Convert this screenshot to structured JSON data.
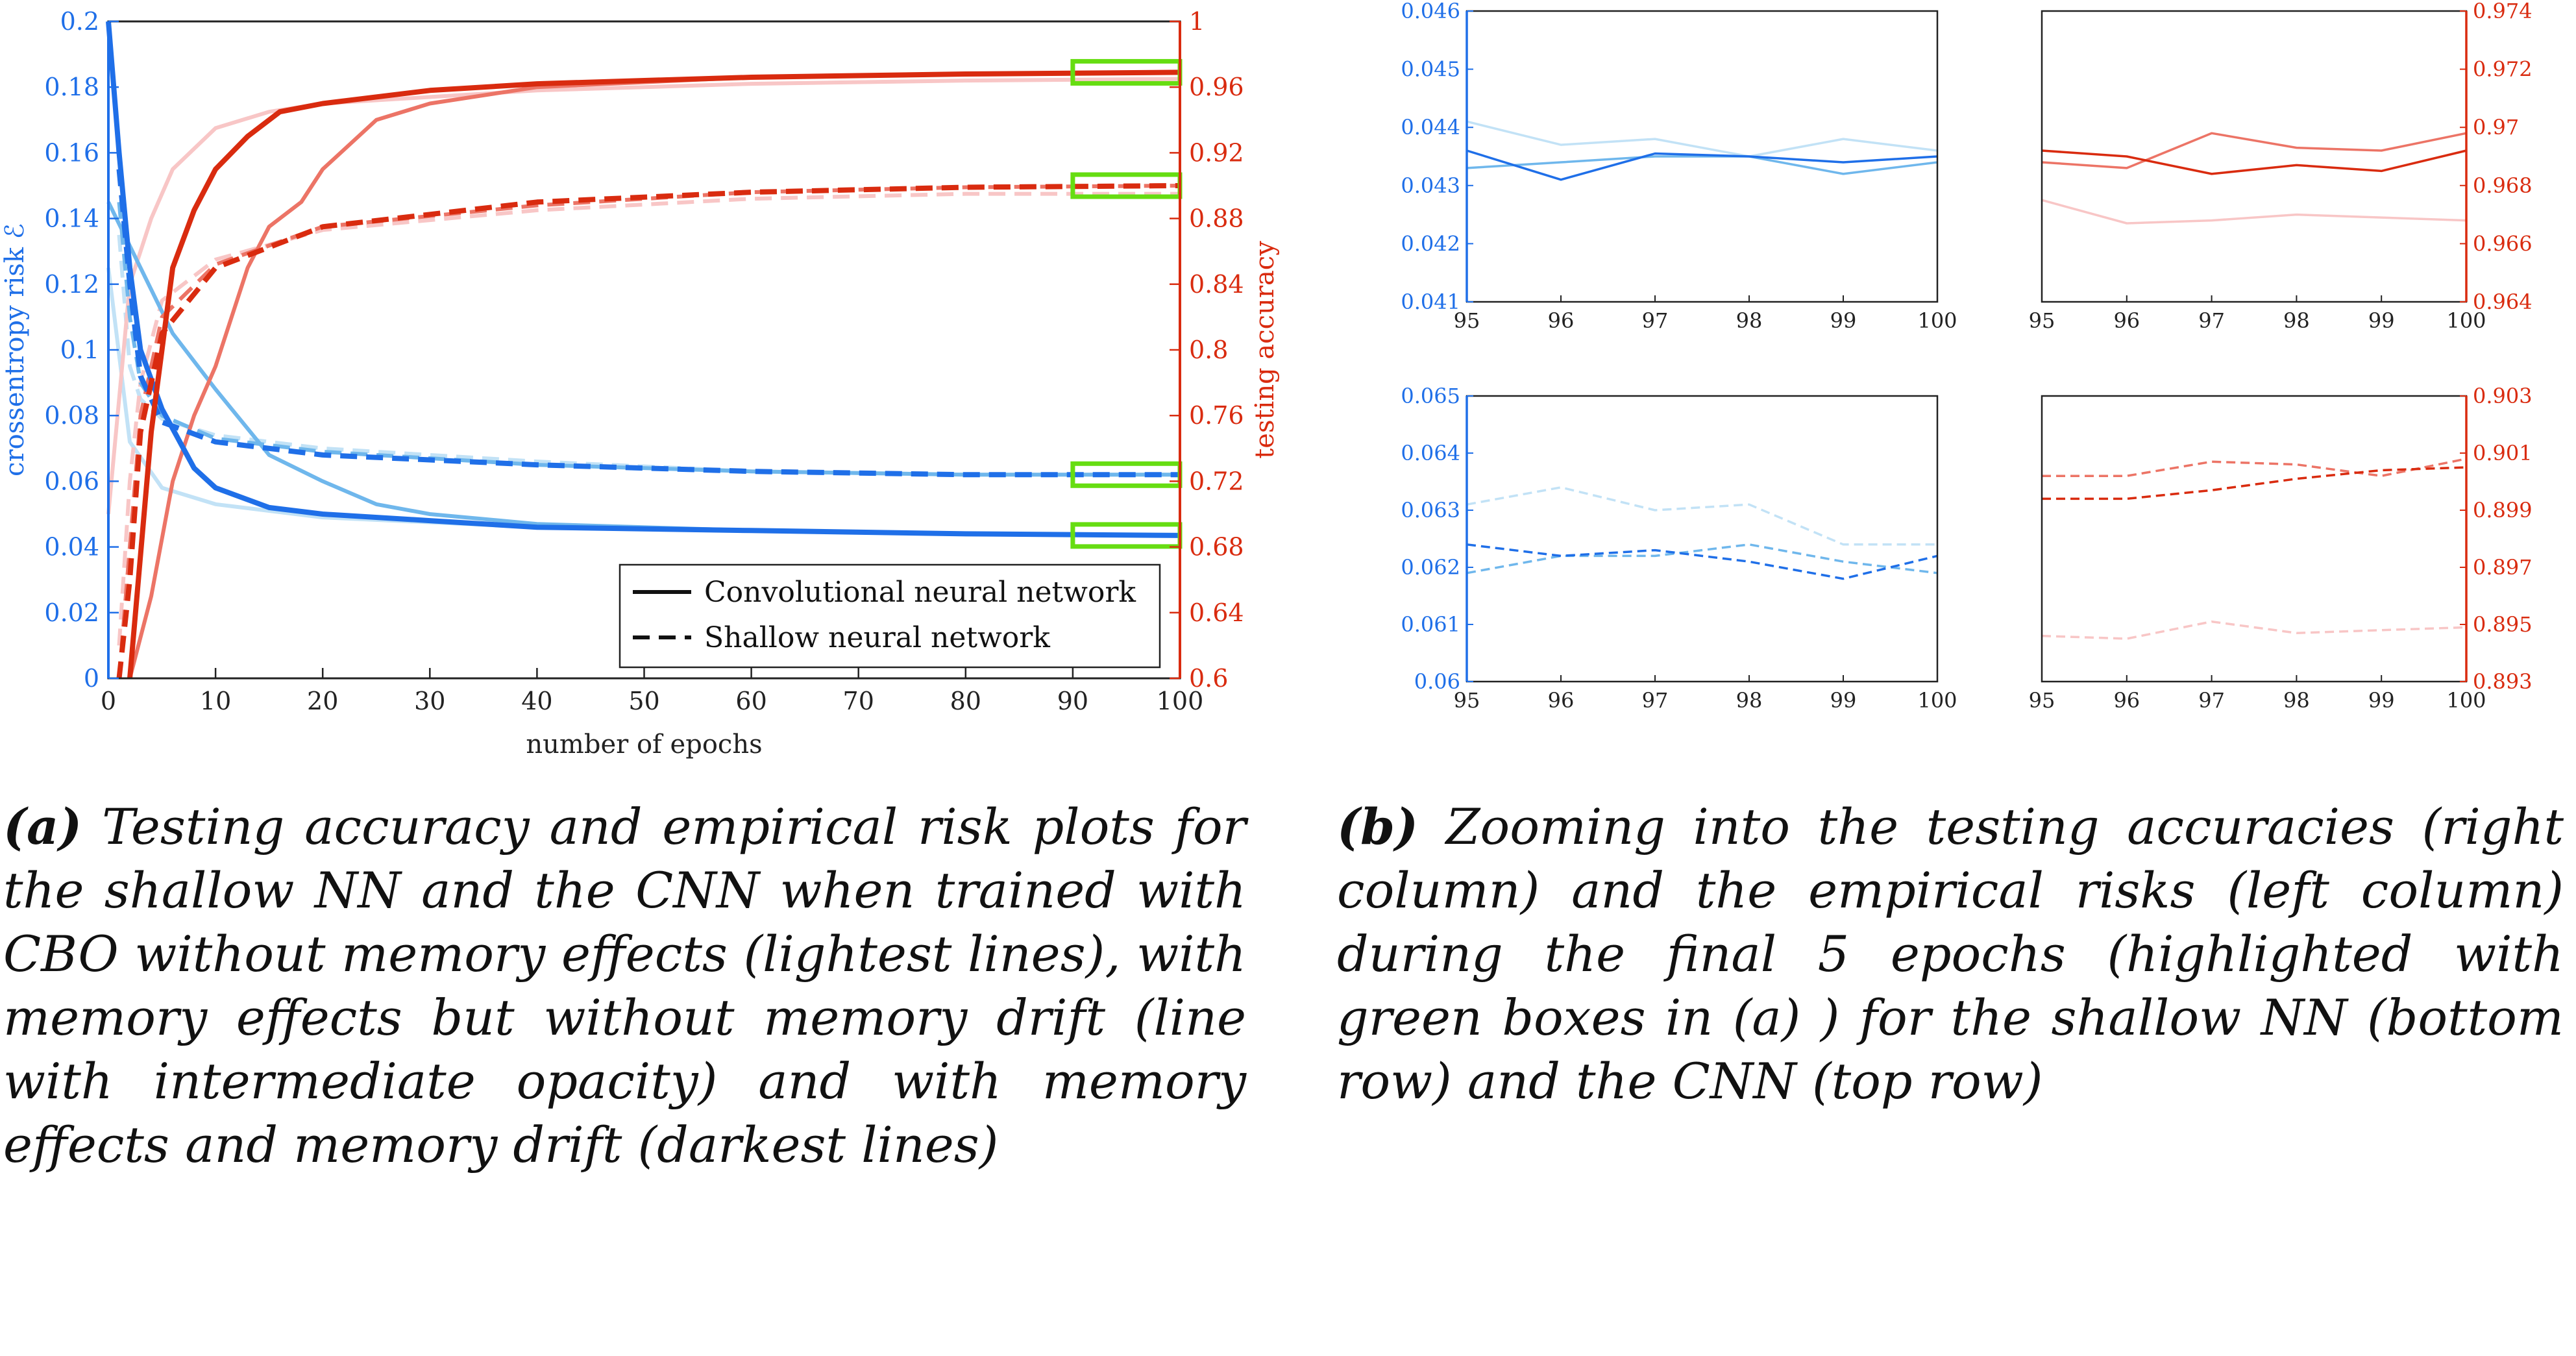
{
  "colors": {
    "blue_dark": "#1f6fe8",
    "blue_mid": "#6fb7ec",
    "blue_light": "#c2e2f6",
    "red_dark": "#d92b0f",
    "red_mid": "#ec7466",
    "red_light": "#f8c6c6",
    "highlight": "#66dd11"
  },
  "captions": {
    "a_label": "(a)",
    "a_text": "Testing accuracy and empirical risk plots for the shallow NN and the CNN when trained with CBO without memory effects (lightest lines), with memory effects but without memory drift (line with intermediate opacity) and with memory effects and memory drift (darkest lines)",
    "b_label": "(b)",
    "b_text": "Zooming into the testing accuracies (right column) and the empirical risks (left column) during the final 5 epochs (highlighted with green boxes in (a) ) for the shallow NN (bottom row) and the CNN (top row)"
  },
  "chart_data": [
    {
      "id": "main",
      "type": "line",
      "xlabel": "number of epochs",
      "ylabel_left": "crossentropy risk ℰ",
      "ylabel_right": "testing accuracy",
      "xlim": [
        0,
        100
      ],
      "ylim_left": [
        0,
        0.2
      ],
      "ylim_right": [
        0.6,
        1.0
      ],
      "xticks": [
        "0",
        "10",
        "20",
        "30",
        "40",
        "50",
        "60",
        "70",
        "80",
        "90",
        "100"
      ],
      "yticks_left": [
        "0",
        "0.02",
        "0.04",
        "0.06",
        "0.08",
        "0.1",
        "0.12",
        "0.14",
        "0.16",
        "0.18",
        "0.2"
      ],
      "yticks_right": [
        "0.6",
        "0.64",
        "0.68",
        "0.72",
        "0.76",
        "0.8",
        "0.84",
        "0.88",
        "0.92",
        "0.96",
        "1"
      ],
      "legend": {
        "position": "bottom-right",
        "entries": [
          {
            "label": "Convolutional neural network",
            "style": "solid"
          },
          {
            "label": "Shallow neural network",
            "style": "dashed"
          }
        ]
      },
      "highlight_boxes_x": [
        90,
        100
      ],
      "series": [
        {
          "axis": "left",
          "style": "solid",
          "shade": "light",
          "points": [
            [
              0,
              0.125
            ],
            [
              2,
              0.072
            ],
            [
              5,
              0.058
            ],
            [
              10,
              0.053
            ],
            [
              20,
              0.049
            ],
            [
              40,
              0.046
            ],
            [
              60,
              0.045
            ],
            [
              80,
              0.044
            ],
            [
              100,
              0.0435
            ]
          ]
        },
        {
          "axis": "left",
          "style": "solid",
          "shade": "mid",
          "points": [
            [
              0,
              0.145
            ],
            [
              3,
              0.125
            ],
            [
              6,
              0.105
            ],
            [
              10,
              0.088
            ],
            [
              15,
              0.068
            ],
            [
              20,
              0.06
            ],
            [
              25,
              0.053
            ],
            [
              30,
              0.05
            ],
            [
              40,
              0.047
            ],
            [
              60,
              0.045
            ],
            [
              80,
              0.044
            ],
            [
              100,
              0.0435
            ]
          ]
        },
        {
          "axis": "left",
          "style": "solid",
          "shade": "dark",
          "points": [
            [
              0,
              0.2
            ],
            [
              1,
              0.16
            ],
            [
              2,
              0.125
            ],
            [
              3,
              0.1
            ],
            [
              5,
              0.082
            ],
            [
              8,
              0.064
            ],
            [
              10,
              0.058
            ],
            [
              15,
              0.052
            ],
            [
              20,
              0.05
            ],
            [
              30,
              0.048
            ],
            [
              40,
              0.046
            ],
            [
              60,
              0.045
            ],
            [
              80,
              0.044
            ],
            [
              100,
              0.0435
            ]
          ]
        },
        {
          "axis": "left",
          "style": "dashed",
          "shade": "light",
          "points": [
            [
              1,
              0.135
            ],
            [
              2,
              0.095
            ],
            [
              3,
              0.085
            ],
            [
              5,
              0.079
            ],
            [
              10,
              0.074
            ],
            [
              20,
              0.07
            ],
            [
              40,
              0.066
            ],
            [
              60,
              0.063
            ],
            [
              80,
              0.062
            ],
            [
              100,
              0.062
            ]
          ]
        },
        {
          "axis": "left",
          "style": "dashed",
          "shade": "mid",
          "points": [
            [
              1,
              0.145
            ],
            [
              2,
              0.11
            ],
            [
              3,
              0.09
            ],
            [
              5,
              0.08
            ],
            [
              10,
              0.073
            ],
            [
              20,
              0.069
            ],
            [
              40,
              0.065
            ],
            [
              60,
              0.063
            ],
            [
              80,
              0.062
            ],
            [
              100,
              0.062
            ]
          ]
        },
        {
          "axis": "left",
          "style": "dashed",
          "shade": "dark",
          "points": [
            [
              1,
              0.155
            ],
            [
              2,
              0.12
            ],
            [
              3,
              0.092
            ],
            [
              5,
              0.078
            ],
            [
              10,
              0.072
            ],
            [
              20,
              0.068
            ],
            [
              40,
              0.065
            ],
            [
              60,
              0.063
            ],
            [
              80,
              0.062
            ],
            [
              100,
              0.062
            ]
          ]
        },
        {
          "axis": "right",
          "style": "solid",
          "shade": "light",
          "points": [
            [
              0,
              0.7
            ],
            [
              2,
              0.84
            ],
            [
              4,
              0.88
            ],
            [
              6,
              0.91
            ],
            [
              10,
              0.935
            ],
            [
              15,
              0.945
            ],
            [
              20,
              0.95
            ],
            [
              40,
              0.958
            ],
            [
              60,
              0.962
            ],
            [
              80,
              0.964
            ],
            [
              100,
              0.965
            ]
          ]
        },
        {
          "axis": "right",
          "style": "solid",
          "shade": "mid",
          "points": [
            [
              2,
              0.6
            ],
            [
              4,
              0.65
            ],
            [
              6,
              0.72
            ],
            [
              8,
              0.76
            ],
            [
              10,
              0.79
            ],
            [
              13,
              0.85
            ],
            [
              15,
              0.875
            ],
            [
              18,
              0.89
            ],
            [
              20,
              0.91
            ],
            [
              25,
              0.94
            ],
            [
              30,
              0.95
            ],
            [
              40,
              0.96
            ],
            [
              60,
              0.966
            ],
            [
              80,
              0.968
            ],
            [
              100,
              0.969
            ]
          ]
        },
        {
          "axis": "right",
          "style": "solid",
          "shade": "dark",
          "points": [
            [
              2,
              0.6
            ],
            [
              4,
              0.75
            ],
            [
              6,
              0.85
            ],
            [
              8,
              0.885
            ],
            [
              10,
              0.91
            ],
            [
              13,
              0.93
            ],
            [
              16,
              0.945
            ],
            [
              20,
              0.95
            ],
            [
              30,
              0.958
            ],
            [
              40,
              0.962
            ],
            [
              60,
              0.966
            ],
            [
              80,
              0.968
            ],
            [
              100,
              0.969
            ]
          ]
        },
        {
          "axis": "right",
          "style": "dashed",
          "shade": "light",
          "points": [
            [
              1,
              0.62
            ],
            [
              2,
              0.72
            ],
            [
              3,
              0.78
            ],
            [
              5,
              0.83
            ],
            [
              10,
              0.855
            ],
            [
              20,
              0.873
            ],
            [
              40,
              0.885
            ],
            [
              60,
              0.892
            ],
            [
              80,
              0.895
            ],
            [
              100,
              0.895
            ]
          ]
        },
        {
          "axis": "right",
          "style": "dashed",
          "shade": "mid",
          "points": [
            [
              1,
              0.6
            ],
            [
              2,
              0.68
            ],
            [
              3,
              0.76
            ],
            [
              5,
              0.82
            ],
            [
              10,
              0.852
            ],
            [
              20,
              0.875
            ],
            [
              40,
              0.888
            ],
            [
              60,
              0.896
            ],
            [
              80,
              0.899
            ],
            [
              100,
              0.9
            ]
          ]
        },
        {
          "axis": "right",
          "style": "dashed",
          "shade": "dark",
          "points": [
            [
              1,
              0.6
            ],
            [
              2,
              0.66
            ],
            [
              3,
              0.75
            ],
            [
              5,
              0.81
            ],
            [
              10,
              0.85
            ],
            [
              20,
              0.875
            ],
            [
              40,
              0.89
            ],
            [
              60,
              0.896
            ],
            [
              80,
              0.899
            ],
            [
              100,
              0.9
            ]
          ]
        }
      ]
    },
    {
      "id": "zoom_cnn_risk",
      "type": "line",
      "color_axis": "blue",
      "xlim": [
        95,
        100
      ],
      "ylim": [
        0.041,
        0.046
      ],
      "xticks": [
        "95",
        "96",
        "97",
        "98",
        "99",
        "100"
      ],
      "yticks": [
        "0.041",
        "0.042",
        "0.043",
        "0.044",
        "0.045",
        "0.046"
      ],
      "series": [
        {
          "style": "solid",
          "shade": "light",
          "x": [
            95,
            96,
            97,
            98,
            99,
            100
          ],
          "y": [
            0.0441,
            0.0437,
            0.0438,
            0.0435,
            0.0438,
            0.0436
          ]
        },
        {
          "style": "solid",
          "shade": "mid",
          "x": [
            95,
            96,
            97,
            98,
            99,
            100
          ],
          "y": [
            0.0433,
            0.0434,
            0.0435,
            0.0435,
            0.0432,
            0.0434
          ]
        },
        {
          "style": "solid",
          "shade": "dark",
          "x": [
            95,
            96,
            97,
            98,
            99,
            100
          ],
          "y": [
            0.0436,
            0.0431,
            0.04355,
            0.0435,
            0.0434,
            0.0435
          ]
        }
      ]
    },
    {
      "id": "zoom_cnn_acc",
      "type": "line",
      "color_axis": "red",
      "xlim": [
        95,
        100
      ],
      "ylim": [
        0.964,
        0.974
      ],
      "xticks": [
        "95",
        "96",
        "97",
        "98",
        "99",
        "100"
      ],
      "yticks": [
        "0.964",
        "0.966",
        "0.968",
        "0.97",
        "0.972",
        "0.974"
      ],
      "series": [
        {
          "style": "solid",
          "shade": "light",
          "x": [
            95,
            96,
            97,
            98,
            99,
            100
          ],
          "y": [
            0.9675,
            0.9667,
            0.9668,
            0.967,
            0.9669,
            0.9668
          ]
        },
        {
          "style": "solid",
          "shade": "mid",
          "x": [
            95,
            96,
            97,
            98,
            99,
            100
          ],
          "y": [
            0.9688,
            0.9686,
            0.9698,
            0.9693,
            0.9692,
            0.9698
          ]
        },
        {
          "style": "solid",
          "shade": "dark",
          "x": [
            95,
            96,
            97,
            98,
            99,
            100
          ],
          "y": [
            0.9692,
            0.969,
            0.9684,
            0.9687,
            0.9685,
            0.9692
          ]
        }
      ]
    },
    {
      "id": "zoom_shallow_risk",
      "type": "line",
      "color_axis": "blue",
      "xlim": [
        95,
        100
      ],
      "ylim": [
        0.06,
        0.065
      ],
      "xticks": [
        "95",
        "96",
        "97",
        "98",
        "99",
        "100"
      ],
      "yticks": [
        "0.06",
        "0.061",
        "0.062",
        "0.063",
        "0.064",
        "0.065"
      ],
      "series": [
        {
          "style": "dashed",
          "shade": "light",
          "x": [
            95,
            96,
            97,
            98,
            99,
            100
          ],
          "y": [
            0.0631,
            0.0634,
            0.063,
            0.0631,
            0.0624,
            0.0624
          ]
        },
        {
          "style": "dashed",
          "shade": "mid",
          "x": [
            95,
            96,
            97,
            98,
            99,
            100
          ],
          "y": [
            0.0619,
            0.0622,
            0.0622,
            0.0624,
            0.0621,
            0.0619
          ]
        },
        {
          "style": "dashed",
          "shade": "dark",
          "x": [
            95,
            96,
            97,
            98,
            99,
            100
          ],
          "y": [
            0.0624,
            0.0622,
            0.0623,
            0.0621,
            0.0618,
            0.0622
          ]
        }
      ]
    },
    {
      "id": "zoom_shallow_acc",
      "type": "line",
      "color_axis": "red",
      "xlim": [
        95,
        100
      ],
      "ylim": [
        0.893,
        0.903
      ],
      "xticks": [
        "95",
        "96",
        "97",
        "98",
        "99",
        "100"
      ],
      "yticks": [
        "0.893",
        "0.895",
        "0.897",
        "0.899",
        "0.901",
        "0.903"
      ],
      "series": [
        {
          "style": "dashed",
          "shade": "light",
          "x": [
            95,
            96,
            97,
            98,
            99,
            100
          ],
          "y": [
            0.8946,
            0.8945,
            0.8951,
            0.8947,
            0.8948,
            0.8949
          ]
        },
        {
          "style": "dashed",
          "shade": "mid",
          "x": [
            95,
            96,
            97,
            98,
            99,
            100
          ],
          "y": [
            0.9002,
            0.9002,
            0.9007,
            0.9006,
            0.9002,
            0.9008
          ]
        },
        {
          "style": "dashed",
          "shade": "dark",
          "x": [
            95,
            96,
            97,
            98,
            99,
            100
          ],
          "y": [
            0.8994,
            0.8994,
            0.8997,
            0.9001,
            0.9004,
            0.9005
          ]
        }
      ]
    }
  ]
}
